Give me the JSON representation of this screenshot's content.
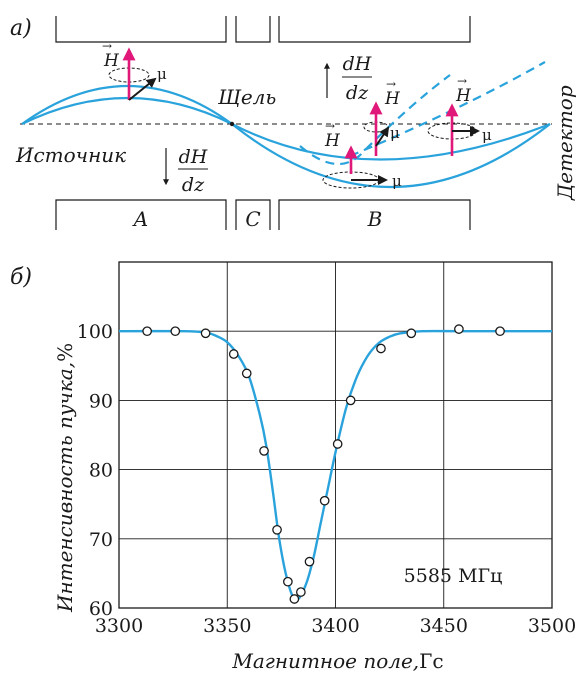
{
  "colors": {
    "curve": "#2aa3dc",
    "arrow_H": "#e0187a",
    "arrow_mu": "#1a1a1a",
    "text": "#1a1a1a",
    "grid": "#1a1a1a"
  },
  "panel_a": {
    "label": "а)",
    "source_label": "Источник",
    "slit_label": "Щель",
    "detector_label": "Детектор",
    "magnet_labels": [
      "A",
      "C",
      "B"
    ],
    "gradient_top": {
      "num": "dH",
      "den": "dz"
    },
    "gradient_bottom": {
      "num": "dH",
      "den": "dz"
    },
    "vector_H": "H",
    "vector_mu": "μ"
  },
  "panel_b": {
    "label": "б)",
    "annotation": "5585 МГц"
  },
  "chart_data": {
    "type": "scatter",
    "title": "",
    "xlabel": "Магнитное поле,",
    "xlabel_unit": "Гс",
    "ylabel": "Интенсивность пучка,",
    "ylabel_unit": "%",
    "xlim": [
      3300,
      3500
    ],
    "ylim": [
      60,
      110
    ],
    "xticks": [
      3300,
      3350,
      3400,
      3450,
      3500
    ],
    "yticks": [
      60,
      70,
      80,
      90,
      100
    ],
    "grid": true,
    "series": [
      {
        "kind": "points",
        "x": [
          3313,
          3326,
          3340,
          3353,
          3359,
          3367,
          3373,
          3378,
          3381,
          3384,
          3388,
          3395,
          3401,
          3407,
          3421,
          3435,
          3457,
          3476
        ],
        "y": [
          100,
          100,
          99.7,
          96.7,
          93.9,
          82.7,
          71.3,
          63.8,
          61.3,
          62.3,
          66.7,
          75.5,
          83.7,
          90,
          97.5,
          99.7,
          100.3,
          100
        ]
      },
      {
        "kind": "fit_curve",
        "x": [
          3300,
          3330,
          3340,
          3345,
          3350,
          3355,
          3360,
          3365,
          3368,
          3371,
          3374,
          3377,
          3380,
          3382,
          3384,
          3387,
          3390,
          3393,
          3396,
          3400,
          3405,
          3410,
          3415,
          3420,
          3425,
          3430,
          3440,
          3460,
          3500
        ],
        "y": [
          100,
          100,
          99.8,
          99.3,
          98.4,
          96.5,
          93.5,
          88,
          83.5,
          77,
          70,
          65,
          61.8,
          61.2,
          61.8,
          64,
          67.5,
          72,
          76.5,
          82.5,
          89,
          93.5,
          96.5,
          98.3,
          99.2,
          99.7,
          100,
          100,
          100
        ]
      }
    ]
  }
}
